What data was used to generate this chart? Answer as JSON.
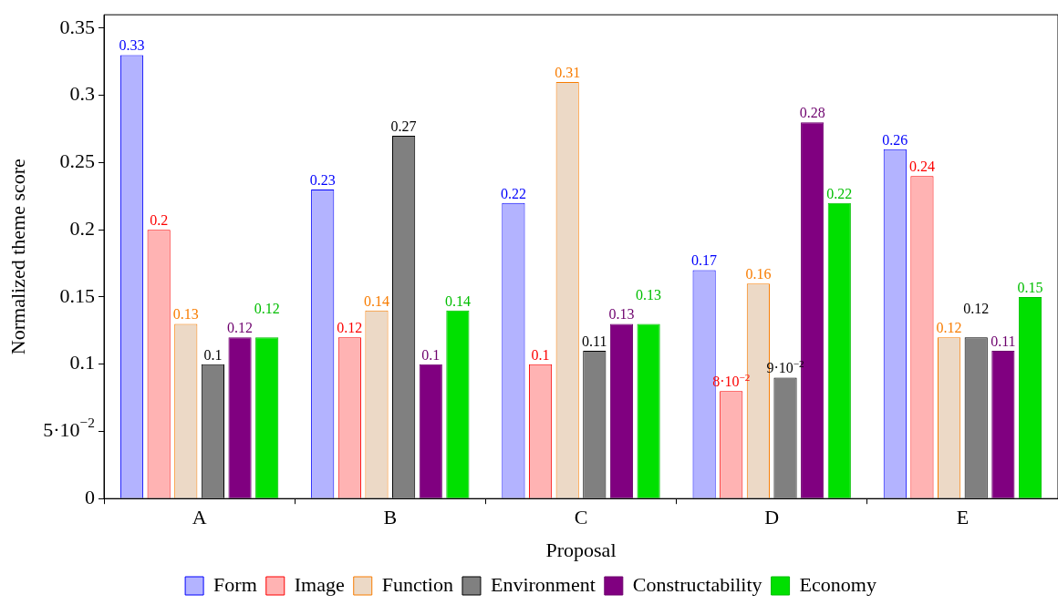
{
  "chart_data": {
    "type": "bar",
    "xlabel": "Proposal",
    "ylabel": "Normalized theme score",
    "categories": [
      "A",
      "B",
      "C",
      "D",
      "E"
    ],
    "ylim": [
      0,
      0.36
    ],
    "yticks": [
      0,
      {
        "value": 0.05,
        "label": "5·10$^{−2}$"
      },
      0.1,
      0.15,
      0.2,
      0.25,
      0.3,
      0.35
    ],
    "legend": "bottom",
    "series": [
      {
        "name": "Form",
        "color": "#b3b3ff",
        "values": [
          0.33,
          0.23,
          0.22,
          0.17,
          0.26
        ],
        "value_labels": [
          "0.33",
          "0.23",
          "0.22",
          "0.17",
          "0.26"
        ]
      },
      {
        "name": "Image",
        "color": "#ffb3b3",
        "values": [
          0.2,
          0.12,
          0.1,
          0.08,
          0.24
        ],
        "value_labels": [
          "0.2",
          "0.12",
          "0.1",
          "8·10$^{−2}$",
          "0.24"
        ]
      },
      {
        "name": "Function",
        "color": "#ecd9c6",
        "values": [
          0.13,
          0.14,
          0.31,
          0.16,
          0.12
        ],
        "value_labels": [
          "0.13",
          "0.14",
          "0.31",
          "0.16",
          "0.12"
        ]
      },
      {
        "name": "Environment",
        "color": "#808080",
        "values": [
          0.1,
          0.27,
          0.11,
          0.09,
          0.12
        ],
        "value_labels": [
          "0.1",
          "0.27",
          "0.11",
          "9·10$^{−2}$",
          "0.12"
        ]
      },
      {
        "name": "Constructability",
        "color": "#800080",
        "values": [
          0.12,
          0.1,
          0.13,
          0.28,
          0.11
        ],
        "value_labels": [
          "0.12",
          "0.1",
          "0.13",
          "0.28",
          "0.11"
        ]
      },
      {
        "name": "Economy",
        "color": "#00e000",
        "values": [
          0.12,
          0.14,
          0.13,
          0.22,
          0.15
        ],
        "value_labels": [
          "0.12",
          "0.14",
          "0.13",
          "0.22",
          "0.15"
        ]
      }
    ]
  }
}
